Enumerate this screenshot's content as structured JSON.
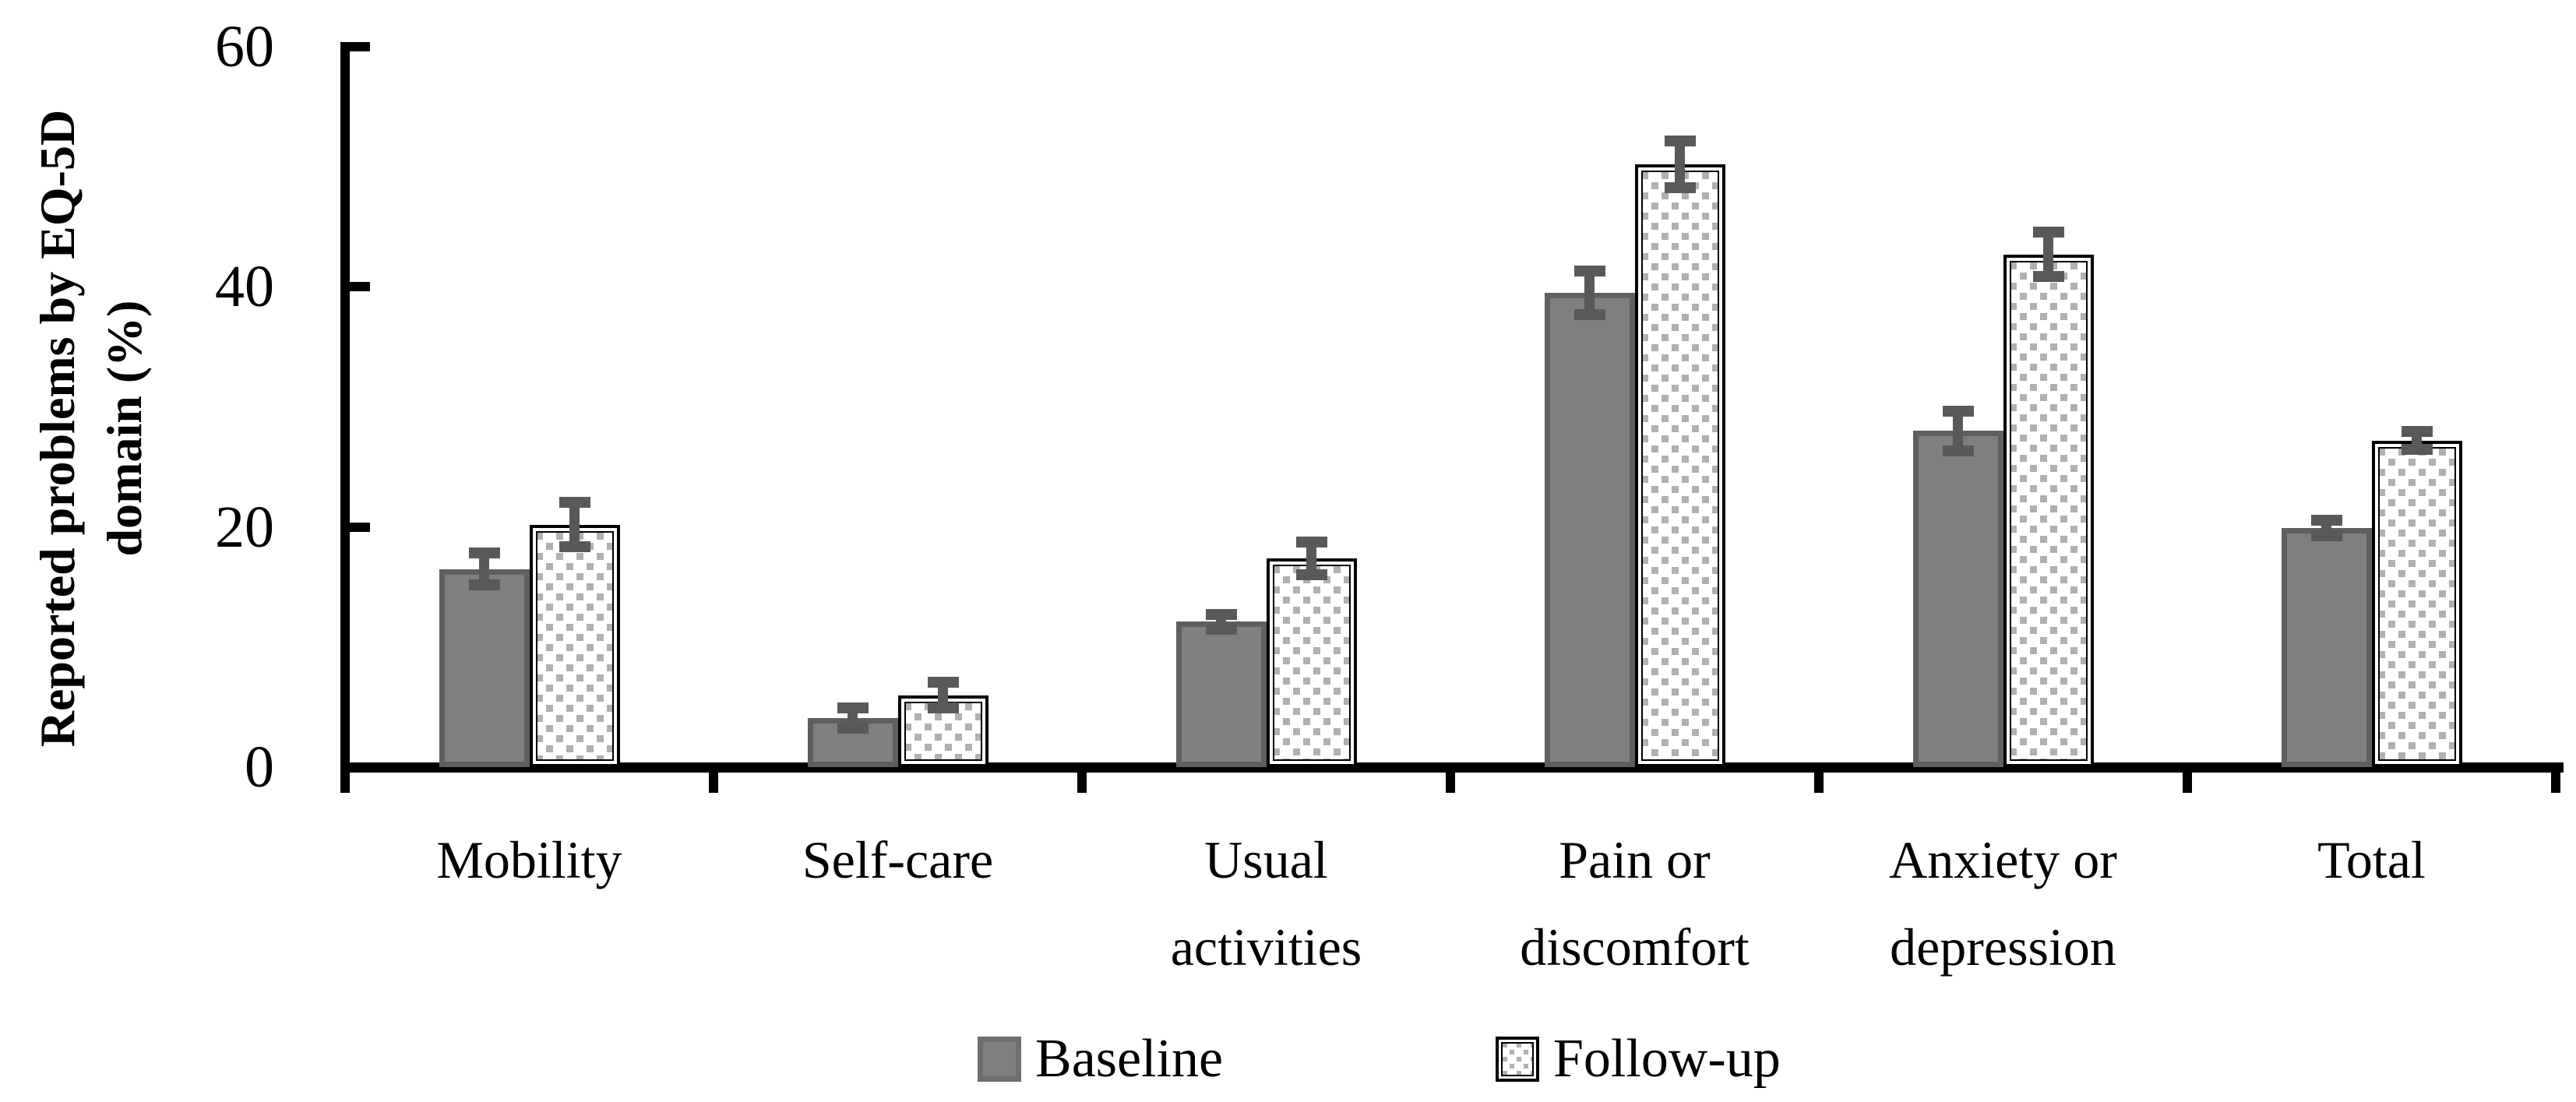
{
  "chart_data": {
    "type": "bar",
    "title": "",
    "categories": [
      "Mobility",
      "Self-care",
      "Usual\nactivities",
      "Pain or\ndiscomfort",
      "Anxiety or\ndepression",
      "Total"
    ],
    "series": [
      {
        "name": "Baseline",
        "values": [
          16.5,
          4.1,
          12.1,
          39.5,
          28.0,
          19.9
        ],
        "errors": [
          1.8,
          1.3,
          1.1,
          2.3,
          2.1,
          1.1
        ],
        "fill": "#7f7f7f",
        "border": "#5f5f5f",
        "pattern": "solid"
      },
      {
        "name": "Follow-up",
        "values": [
          20.2,
          6.0,
          17.4,
          50.2,
          42.7,
          27.2
        ],
        "errors": [
          2.3,
          1.5,
          1.8,
          2.4,
          2.3,
          1.2
        ],
        "fill": "#ffffff",
        "border": "#000000",
        "pattern": "dots",
        "dot_color": "#b0b0b0"
      }
    ],
    "ylabel": "Reported problems by EQ-5D domain (%)",
    "ylabel_lines": [
      "Reported problems by EQ-5D",
      "domain (%)"
    ],
    "xlabel": "",
    "yticks": [
      0,
      20,
      40,
      60
    ],
    "ylim": [
      0,
      60
    ],
    "grid": "off",
    "legend_position": "bottom",
    "error_bar_color": "#595959",
    "axis_color": "#000000"
  }
}
